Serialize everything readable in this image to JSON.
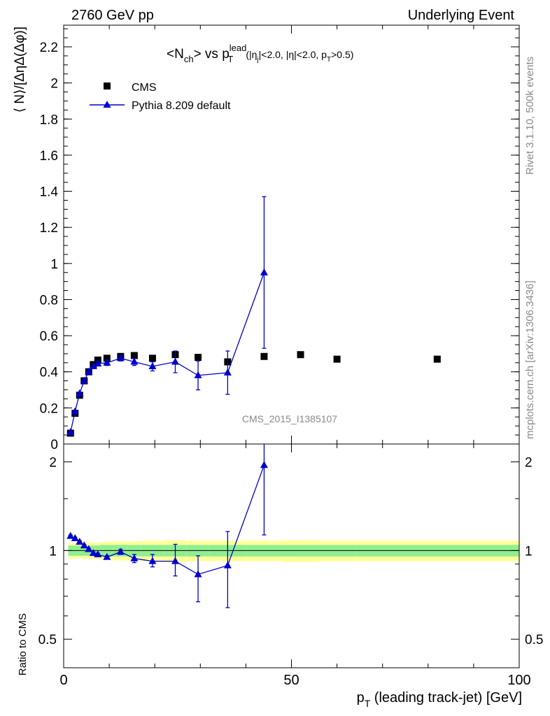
{
  "header": {
    "left": "2760 GeV pp",
    "right": "Underlying Event"
  },
  "side_labels": {
    "rivet": "Rivet 3.1.10,  500k events",
    "mcplots": "mcplots.cern.ch [arXiv:1306.3436]"
  },
  "watermark": "CMS_2015_I1385107",
  "title": {
    "nch": "<N",
    "nch_sub": "ch",
    "vs": "> vs p",
    "sup": "lead",
    "sub": "T",
    "cuts_1": "(|η",
    "cuts_1_sub": "j",
    "cuts_2": "|<2.0, |η|<2.0, p",
    "cuts_2_sub": "T",
    "cuts_3": ">0.5)"
  },
  "colors": {
    "data": "#000000",
    "mc": "#0000cc",
    "band_inner": "#90ee90",
    "band_outer": "#ffff99"
  },
  "chart_data": [
    {
      "type": "scatter",
      "panel": "main",
      "ylabel": "⟨ N⟩/[ΔηΔ(Δφ)]",
      "xlim": [
        0,
        100
      ],
      "ylim": [
        0,
        2.32
      ],
      "y_ticks": [
        "0",
        "0.2",
        "0.4",
        "0.6",
        "0.8",
        "1",
        "1.2",
        "1.4",
        "1.6",
        "1.8",
        "2",
        "2.2"
      ],
      "y_tick_values": [
        0,
        0.2,
        0.4,
        0.6,
        0.8,
        1.0,
        1.2,
        1.4,
        1.6,
        1.8,
        2.0,
        2.2
      ],
      "legend_position": "top-left",
      "series": [
        {
          "name": "CMS",
          "marker": "square",
          "x": [
            1.5,
            2.5,
            3.5,
            4.5,
            5.5,
            6.5,
            7.5,
            9.5,
            12.5,
            15.5,
            19.5,
            24.5,
            29.5,
            36,
            44,
            52,
            60,
            82
          ],
          "y": [
            0.06,
            0.17,
            0.27,
            0.35,
            0.4,
            0.44,
            0.465,
            0.475,
            0.485,
            0.49,
            0.475,
            0.495,
            0.48,
            0.455,
            0.485,
            0.495,
            0.47,
            0.47
          ]
        },
        {
          "name": "Pythia 8.209 default",
          "marker": "triangle",
          "x": [
            1.5,
            2.5,
            3.5,
            4.5,
            5.5,
            6.5,
            7.5,
            9.5,
            12.5,
            15.5,
            19.5,
            24.5,
            29.5,
            36,
            44
          ],
          "y": [
            0.065,
            0.18,
            0.28,
            0.35,
            0.4,
            0.43,
            0.445,
            0.45,
            0.475,
            0.455,
            0.43,
            0.455,
            0.38,
            0.395,
            0.95
          ],
          "yerr": [
            0.003,
            0.005,
            0.006,
            0.008,
            0.01,
            0.01,
            0.012,
            0.015,
            0.015,
            0.02,
            0.025,
            0.06,
            0.08,
            0.12,
            0.42
          ]
        }
      ]
    },
    {
      "type": "scatter",
      "panel": "ratio",
      "ylabel": "Ratio to CMS",
      "xlabel": "p",
      "xlabel_sub": "T",
      "xlabel_rest": " (leading track-jet) [GeV]",
      "xlim": [
        0,
        100
      ],
      "ylim": [
        0.4,
        2.3
      ],
      "log_y": true,
      "x_ticks": [
        "0",
        "50",
        "100"
      ],
      "x_tick_values": [
        0,
        50,
        100
      ],
      "y_ticks": [
        "0.5",
        "1",
        "2"
      ],
      "y_tick_values": [
        0.5,
        1,
        2
      ],
      "bands": {
        "x_edges": [
          1,
          2,
          3,
          4,
          5,
          6,
          7,
          8,
          11,
          14,
          17,
          22,
          27,
          32,
          40,
          48,
          56,
          64,
          100
        ],
        "inner": [
          0.04,
          0.04,
          0.04,
          0.04,
          0.04,
          0.04,
          0.04,
          0.045,
          0.045,
          0.045,
          0.045,
          0.045,
          0.045,
          0.045,
          0.045,
          0.045,
          0.045,
          0.045
        ],
        "outer": [
          0.06,
          0.06,
          0.06,
          0.06,
          0.065,
          0.065,
          0.065,
          0.07,
          0.075,
          0.075,
          0.08,
          0.085,
          0.08,
          0.08,
          0.08,
          0.085,
          0.08,
          0.08
        ]
      },
      "series": [
        {
          "name": "Pythia 8.209 default",
          "marker": "triangle",
          "x": [
            1.5,
            2.5,
            3.5,
            4.5,
            5.5,
            6.5,
            7.5,
            9.5,
            12.5,
            15.5,
            19.5,
            24.5,
            29.5,
            36,
            44
          ],
          "y": [
            1.12,
            1.1,
            1.07,
            1.04,
            1.01,
            0.98,
            0.97,
            0.95,
            0.99,
            0.94,
            0.92,
            0.92,
            0.83,
            0.89,
            1.95
          ],
          "err_lo": [
            1.11,
            1.09,
            1.06,
            1.03,
            1.0,
            0.97,
            0.96,
            0.94,
            0.97,
            0.91,
            0.88,
            0.82,
            0.67,
            0.64,
            1.13
          ],
          "err_hi": [
            1.13,
            1.11,
            1.08,
            1.05,
            1.02,
            0.99,
            0.98,
            0.96,
            1.01,
            0.97,
            0.97,
            1.05,
            0.96,
            1.16,
            2.3
          ]
        }
      ]
    }
  ]
}
